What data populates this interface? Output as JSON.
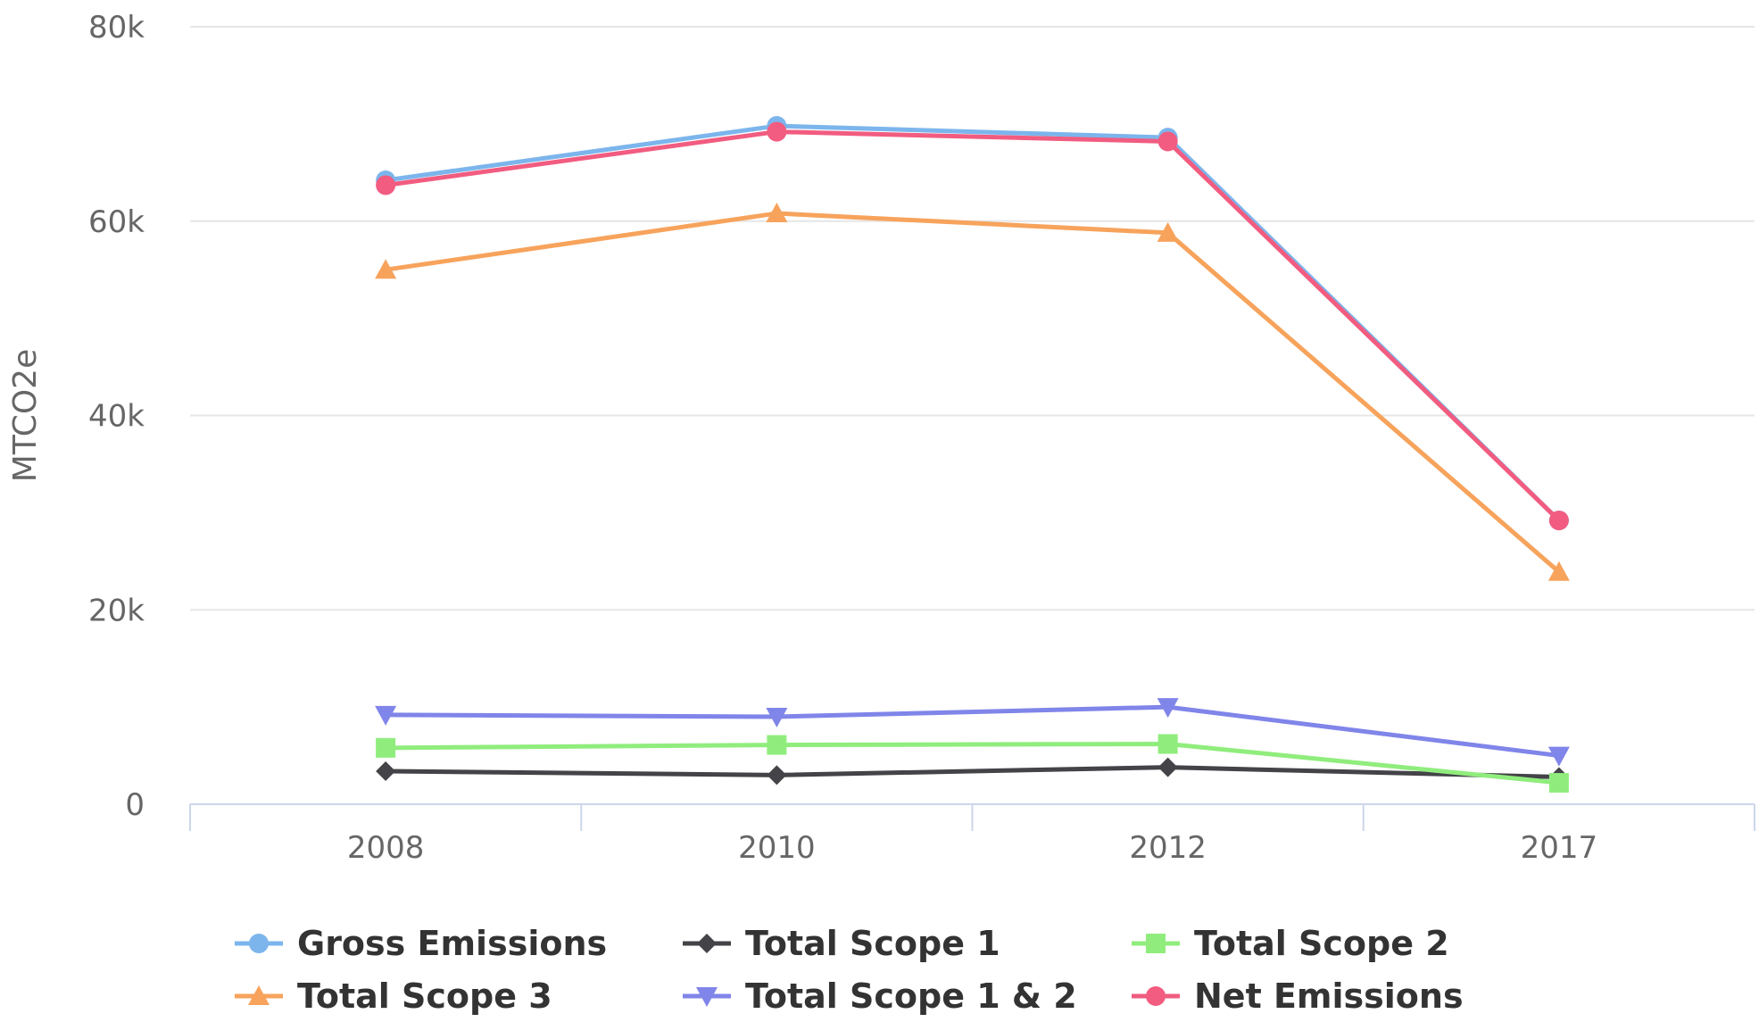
{
  "chart_data": {
    "type": "line",
    "title": "",
    "xlabel": "",
    "ylabel": "MTCO2e",
    "categories": [
      "2008",
      "2010",
      "2012",
      "2017"
    ],
    "yticks": [
      0,
      20000,
      40000,
      60000,
      80000
    ],
    "ytick_labels": [
      "0",
      "20k",
      "40k",
      "60k",
      "80k"
    ],
    "ylim": [
      0,
      80000
    ],
    "grid": true,
    "legend_position": "bottom",
    "series": [
      {
        "name": "Gross Emissions",
        "color": "#7cb5ec",
        "marker": "circle",
        "values": [
          64200,
          69800,
          68600,
          29200
        ]
      },
      {
        "name": "Total Scope 1",
        "color": "#434348",
        "marker": "diamond",
        "values": [
          3400,
          3000,
          3800,
          2800
        ]
      },
      {
        "name": "Total Scope 2",
        "color": "#90ed7d",
        "marker": "square",
        "values": [
          5800,
          6100,
          6200,
          2200
        ]
      },
      {
        "name": "Total Scope 3",
        "color": "#f7a35c",
        "marker": "triangle",
        "values": [
          55000,
          60800,
          58800,
          23900
        ]
      },
      {
        "name": "Total Scope 1 & 2",
        "color": "#8085e9",
        "marker": "triangle-down",
        "values": [
          9200,
          9000,
          10000,
          5000
        ]
      },
      {
        "name": "Net Emissions",
        "color": "#f15c80",
        "marker": "circle",
        "values": [
          63700,
          69200,
          68200,
          29200
        ]
      }
    ]
  }
}
